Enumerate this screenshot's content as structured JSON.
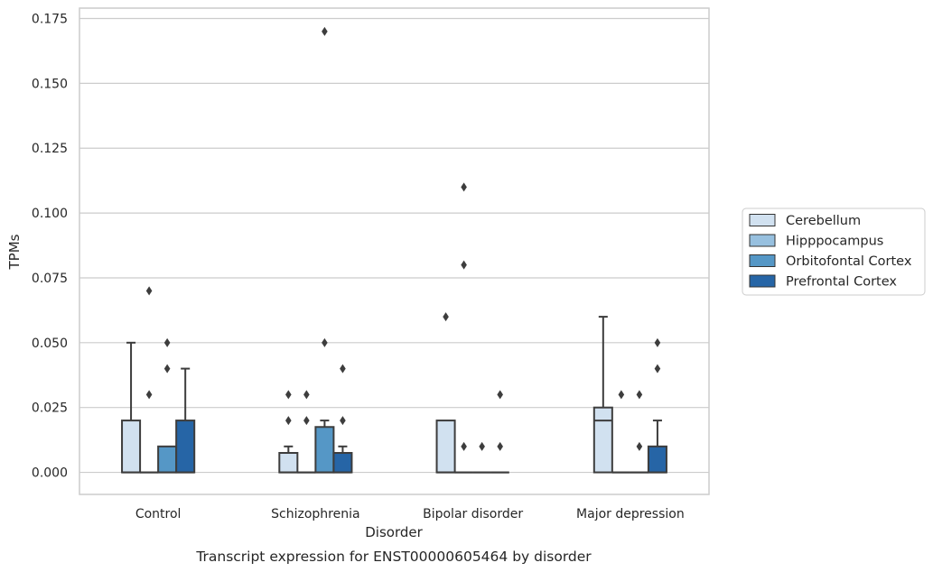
{
  "chart_data": {
    "type": "box",
    "caption": "Transcript expression for ENST00000605464 by disorder",
    "xlabel": "Disorder",
    "ylabel": "TPMs",
    "categories": [
      "Control",
      "Schizophrenia",
      "Bipolar disorder",
      "Major depression"
    ],
    "y_ticks": [
      "0.000",
      "0.025",
      "0.050",
      "0.075",
      "0.100",
      "0.125",
      "0.150",
      "0.175"
    ],
    "ylim": [
      -0.0085,
      0.179
    ],
    "grid": true,
    "legend_position": "right",
    "series": [
      {
        "name": "Cerebellum",
        "color": "#d1e1f0",
        "boxes": [
          {
            "q1": 0,
            "median": 0,
            "q3": 0.02,
            "whisker_low": 0,
            "whisker_high": 0.05,
            "outliers": []
          },
          {
            "q1": 0,
            "median": 0,
            "q3": 0.0075,
            "whisker_low": 0,
            "whisker_high": 0.01,
            "outliers": [
              0.02,
              0.03
            ]
          },
          {
            "q1": 0,
            "median": 0,
            "q3": 0.02,
            "whisker_low": 0,
            "whisker_high": 0.02,
            "outliers": [
              0.06
            ]
          },
          {
            "q1": 0,
            "median": 0.02,
            "q3": 0.025,
            "whisker_low": 0,
            "whisker_high": 0.06,
            "outliers": []
          }
        ]
      },
      {
        "name": "Hipppocampus",
        "color": "#97c0df",
        "boxes": [
          {
            "q1": 0,
            "median": 0,
            "q3": 0,
            "whisker_low": 0,
            "whisker_high": 0,
            "outliers": [
              0.03,
              0.07
            ]
          },
          {
            "q1": 0,
            "median": 0,
            "q3": 0,
            "whisker_low": 0,
            "whisker_high": 0,
            "outliers": [
              0.02,
              0.03
            ]
          },
          {
            "q1": 0,
            "median": 0,
            "q3": 0,
            "whisker_low": 0,
            "whisker_high": 0,
            "outliers": [
              0.01,
              0.08,
              0.11
            ]
          },
          {
            "q1": 0,
            "median": 0,
            "q3": 0,
            "whisker_low": 0,
            "whisker_high": 0,
            "outliers": [
              0.03
            ]
          }
        ]
      },
      {
        "name": "Orbitofontal Cortex",
        "color": "#5597c6",
        "boxes": [
          {
            "q1": 0,
            "median": 0,
            "q3": 0.01,
            "whisker_low": 0,
            "whisker_high": 0.01,
            "outliers": [
              0.04,
              0.05
            ]
          },
          {
            "q1": 0,
            "median": 0,
            "q3": 0.0175,
            "whisker_low": 0,
            "whisker_high": 0.02,
            "outliers": [
              0.05,
              0.17
            ]
          },
          {
            "q1": 0,
            "median": 0,
            "q3": 0,
            "whisker_low": 0,
            "whisker_high": 0,
            "outliers": [
              0.01
            ]
          },
          {
            "q1": 0,
            "median": 0,
            "q3": 0,
            "whisker_low": 0,
            "whisker_high": 0,
            "outliers": [
              0.01,
              0.03
            ]
          }
        ]
      },
      {
        "name": "Prefrontal Cortex",
        "color": "#2665a6",
        "boxes": [
          {
            "q1": 0,
            "median": 0,
            "q3": 0.02,
            "whisker_low": 0,
            "whisker_high": 0.04,
            "outliers": []
          },
          {
            "q1": 0,
            "median": 0,
            "q3": 0.0075,
            "whisker_low": 0,
            "whisker_high": 0.01,
            "outliers": [
              0.02,
              0.04
            ]
          },
          {
            "q1": 0,
            "median": 0,
            "q3": 0,
            "whisker_low": 0,
            "whisker_high": 0,
            "outliers": [
              0.01,
              0.03
            ]
          },
          {
            "q1": 0,
            "median": 0,
            "q3": 0.01,
            "whisker_low": 0,
            "whisker_high": 0.02,
            "outliers": [
              0.04,
              0.05
            ]
          }
        ]
      }
    ]
  }
}
